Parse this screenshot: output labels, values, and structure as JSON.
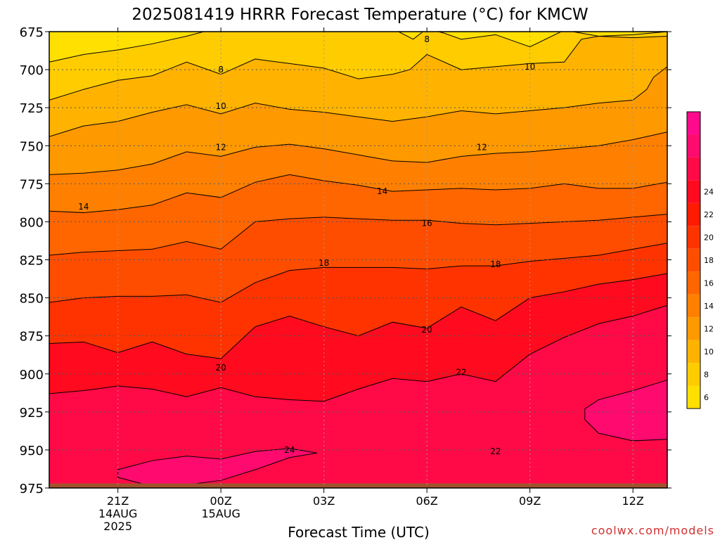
{
  "chart_data": {
    "type": "contour",
    "title": "2025081419 HRRR Forecast Temperature (°C) for KMCW",
    "xlabel": "Forecast Time (UTC)",
    "ylabel": "",
    "y_scale": "pressure (hPa), inverted",
    "ylim": [
      975,
      675
    ],
    "xlim_hours": [
      19,
      37
    ],
    "x_ticks": [
      {
        "hour": 21,
        "label": "21Z",
        "date_line1": "14AUG",
        "date_line2": "2025"
      },
      {
        "hour": 24,
        "label": "00Z",
        "date_line1": "15AUG",
        "date_line2": ""
      },
      {
        "hour": 27,
        "label": "03Z",
        "date_line1": "",
        "date_line2": ""
      },
      {
        "hour": 30,
        "label": "06Z",
        "date_line1": "",
        "date_line2": ""
      },
      {
        "hour": 33,
        "label": "09Z",
        "date_line1": "",
        "date_line2": ""
      },
      {
        "hour": 36,
        "label": "12Z",
        "date_line1": "",
        "date_line2": ""
      }
    ],
    "y_ticks": [
      675,
      700,
      725,
      750,
      775,
      800,
      825,
      850,
      875,
      900,
      925,
      950,
      975
    ],
    "grid": true,
    "contour_levels": [
      6,
      8,
      10,
      12,
      14,
      16,
      18,
      20,
      22,
      24
    ],
    "colorbar_labels": [
      6,
      8,
      10,
      12,
      14,
      16,
      18,
      20,
      22,
      24
    ],
    "colorbar_colors": [
      "#ffe000",
      "#ffcc00",
      "#ffb300",
      "#ff9900",
      "#ff8000",
      "#ff6600",
      "#ff4d00",
      "#ff3300",
      "#ff1a00",
      "#ff0a1e",
      "#ff0a46",
      "#ff0a6e",
      "#ff0a8c"
    ],
    "isotherms": [
      {
        "value": 8,
        "points": [
          [
            19,
            695
          ],
          [
            20,
            690
          ],
          [
            21,
            687
          ],
          [
            22,
            683
          ],
          [
            23,
            678
          ],
          [
            24,
            672
          ],
          [
            25,
            668
          ],
          [
            26,
            667
          ],
          [
            27,
            669
          ],
          [
            28,
            671
          ],
          [
            29,
            673
          ],
          [
            29.6,
            680
          ],
          [
            30,
            673
          ],
          [
            30.5,
            676
          ],
          [
            31,
            680
          ],
          [
            32,
            677
          ],
          [
            33,
            685
          ],
          [
            34,
            674
          ],
          [
            35,
            678
          ],
          [
            36,
            677
          ],
          [
            37,
            675
          ]
        ]
      },
      {
        "value": 10,
        "points": [
          [
            19,
            720
          ],
          [
            20,
            713
          ],
          [
            21,
            707
          ],
          [
            22,
            704
          ],
          [
            23,
            695
          ],
          [
            24,
            703
          ],
          [
            25,
            693
          ],
          [
            26,
            696
          ],
          [
            27,
            699
          ],
          [
            28,
            706
          ],
          [
            29,
            703
          ],
          [
            29.5,
            700
          ],
          [
            30,
            690
          ],
          [
            31,
            700
          ],
          [
            32,
            698
          ],
          [
            33,
            696
          ],
          [
            34,
            695
          ],
          [
            34.5,
            680
          ],
          [
            35,
            678
          ],
          [
            36,
            679
          ],
          [
            37,
            678
          ]
        ]
      },
      {
        "value": 12,
        "points": [
          [
            19,
            744
          ],
          [
            20,
            737
          ],
          [
            21,
            734
          ],
          [
            22,
            728
          ],
          [
            23,
            723
          ],
          [
            24,
            729
          ],
          [
            25,
            722
          ],
          [
            26,
            726
          ],
          [
            27,
            728
          ],
          [
            28,
            731
          ],
          [
            29,
            734
          ],
          [
            30,
            731
          ],
          [
            31,
            727
          ],
          [
            32,
            729
          ],
          [
            33,
            727
          ],
          [
            34,
            725
          ],
          [
            35,
            722
          ],
          [
            36,
            720
          ],
          [
            36.4,
            713
          ],
          [
            36.6,
            705
          ],
          [
            37,
            698
          ]
        ]
      },
      {
        "value": 14,
        "points": [
          [
            19,
            769
          ],
          [
            20,
            768
          ],
          [
            21,
            766
          ],
          [
            22,
            762
          ],
          [
            23,
            754
          ],
          [
            24,
            757
          ],
          [
            25,
            751
          ],
          [
            26,
            749
          ],
          [
            27,
            752
          ],
          [
            28,
            756
          ],
          [
            29,
            760
          ],
          [
            30,
            761
          ],
          [
            31,
            757
          ],
          [
            32,
            755
          ],
          [
            33,
            754
          ],
          [
            34,
            752
          ],
          [
            35,
            750
          ],
          [
            36,
            746
          ],
          [
            37,
            741
          ]
        ]
      },
      {
        "value": 16,
        "points": [
          [
            19,
            793
          ],
          [
            20,
            794
          ],
          [
            21,
            792
          ],
          [
            22,
            789
          ],
          [
            23,
            781
          ],
          [
            24,
            784
          ],
          [
            25,
            774
          ],
          [
            26,
            769
          ],
          [
            27,
            773
          ],
          [
            28,
            776
          ],
          [
            29,
            780
          ],
          [
            30,
            779
          ],
          [
            31,
            778
          ],
          [
            32,
            779
          ],
          [
            33,
            778
          ],
          [
            34,
            775
          ],
          [
            35,
            778
          ],
          [
            36,
            778
          ],
          [
            37,
            774
          ]
        ]
      },
      {
        "value": 18,
        "points": [
          [
            19,
            822
          ],
          [
            20,
            820
          ],
          [
            21,
            819
          ],
          [
            22,
            818
          ],
          [
            23,
            813
          ],
          [
            24,
            818
          ],
          [
            25,
            800
          ],
          [
            26,
            798
          ],
          [
            27,
            797
          ],
          [
            28,
            798
          ],
          [
            29,
            799
          ],
          [
            30,
            799
          ],
          [
            31,
            801
          ],
          [
            32,
            802
          ],
          [
            33,
            801
          ],
          [
            34,
            800
          ],
          [
            35,
            799
          ],
          [
            36,
            797
          ],
          [
            37,
            795
          ]
        ]
      },
      {
        "value": 20,
        "points": [
          [
            19,
            853
          ],
          [
            20,
            850
          ],
          [
            21,
            849
          ],
          [
            22,
            849
          ],
          [
            23,
            848
          ],
          [
            24,
            853
          ],
          [
            25,
            840
          ],
          [
            26,
            832
          ],
          [
            27,
            830
          ],
          [
            28,
            830
          ],
          [
            29,
            830
          ],
          [
            30,
            831
          ],
          [
            31,
            829
          ],
          [
            32,
            829
          ],
          [
            33,
            826
          ],
          [
            34,
            824
          ],
          [
            35,
            822
          ],
          [
            36,
            818
          ],
          [
            37,
            814
          ]
        ]
      },
      {
        "value": 22,
        "points": [
          [
            19,
            880
          ],
          [
            20,
            879
          ],
          [
            21,
            886
          ],
          [
            22,
            879
          ],
          [
            23,
            887
          ],
          [
            24,
            890
          ],
          [
            25,
            869
          ],
          [
            26,
            862
          ],
          [
            27,
            869
          ],
          [
            28,
            875
          ],
          [
            29,
            866
          ],
          [
            30,
            870
          ],
          [
            31,
            856
          ],
          [
            32,
            865
          ],
          [
            33,
            850
          ],
          [
            34,
            846
          ],
          [
            35,
            841
          ],
          [
            36,
            838
          ],
          [
            37,
            834
          ]
        ]
      },
      {
        "value": 24,
        "points": [
          [
            19,
            913
          ],
          [
            20,
            911
          ],
          [
            21,
            908
          ],
          [
            22,
            910
          ],
          [
            23,
            915
          ],
          [
            24,
            909
          ],
          [
            25,
            915
          ],
          [
            26,
            917
          ],
          [
            27,
            918
          ],
          [
            28,
            910
          ],
          [
            29,
            903
          ],
          [
            30,
            905
          ],
          [
            31,
            900
          ],
          [
            32,
            905
          ],
          [
            33,
            887
          ],
          [
            34,
            876
          ],
          [
            35,
            867
          ],
          [
            36,
            862
          ],
          [
            37,
            855
          ]
        ]
      }
    ],
    "warm_pockets": [
      {
        "value": 24,
        "points": [
          [
            21,
            963
          ],
          [
            22,
            957
          ],
          [
            23,
            954
          ],
          [
            24,
            956
          ],
          [
            25,
            951
          ],
          [
            26,
            949
          ],
          [
            26.8,
            952
          ],
          [
            26,
            955
          ],
          [
            25,
            963
          ],
          [
            24,
            970
          ],
          [
            23,
            973
          ],
          [
            22,
            974
          ],
          [
            21,
            968
          ]
        ]
      },
      {
        "value": 24,
        "points": [
          [
            34.6,
            923
          ],
          [
            35,
            917
          ],
          [
            36,
            911
          ],
          [
            37,
            904
          ],
          [
            37,
            943
          ],
          [
            36,
            944
          ],
          [
            35,
            939
          ],
          [
            34.6,
            930
          ]
        ]
      }
    ],
    "contour_label_marks": [
      {
        "text": "8",
        "hour": 30,
        "p": 680
      },
      {
        "text": "8",
        "hour": 24,
        "p": 700
      },
      {
        "text": "10",
        "hour": 33,
        "p": 698
      },
      {
        "text": "10",
        "hour": 24,
        "p": 724
      },
      {
        "text": "12",
        "hour": 24,
        "p": 751
      },
      {
        "text": "12",
        "hour": 31.6,
        "p": 751
      },
      {
        "text": "14",
        "hour": 20,
        "p": 790
      },
      {
        "text": "14",
        "hour": 28.7,
        "p": 780
      },
      {
        "text": "16",
        "hour": 30,
        "p": 801
      },
      {
        "text": "18",
        "hour": 27,
        "p": 827
      },
      {
        "text": "18",
        "hour": 32,
        "p": 828
      },
      {
        "text": "20",
        "hour": 24,
        "p": 896
      },
      {
        "text": "20",
        "hour": 30,
        "p": 871
      },
      {
        "text": "22",
        "hour": 31,
        "p": 899
      },
      {
        "text": "22",
        "hour": 32,
        "p": 951
      },
      {
        "text": "24",
        "hour": 26,
        "p": 950
      }
    ],
    "surface_bar_color": "#a0522d"
  },
  "credit": "coolwx.com/models"
}
